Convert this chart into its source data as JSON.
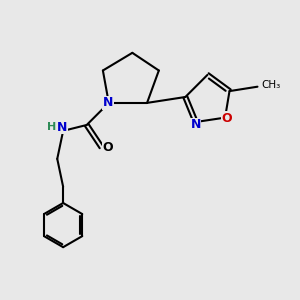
{
  "bg_color": "#e8e8e8",
  "bond_color": "#000000",
  "N_color": "#0000cd",
  "O_color": "#cc0000",
  "H_color": "#2e8b57",
  "line_width": 1.5,
  "figsize": [
    3.0,
    3.0
  ],
  "dpi": 100,
  "xlim": [
    0,
    10
  ],
  "ylim": [
    0,
    10
  ]
}
